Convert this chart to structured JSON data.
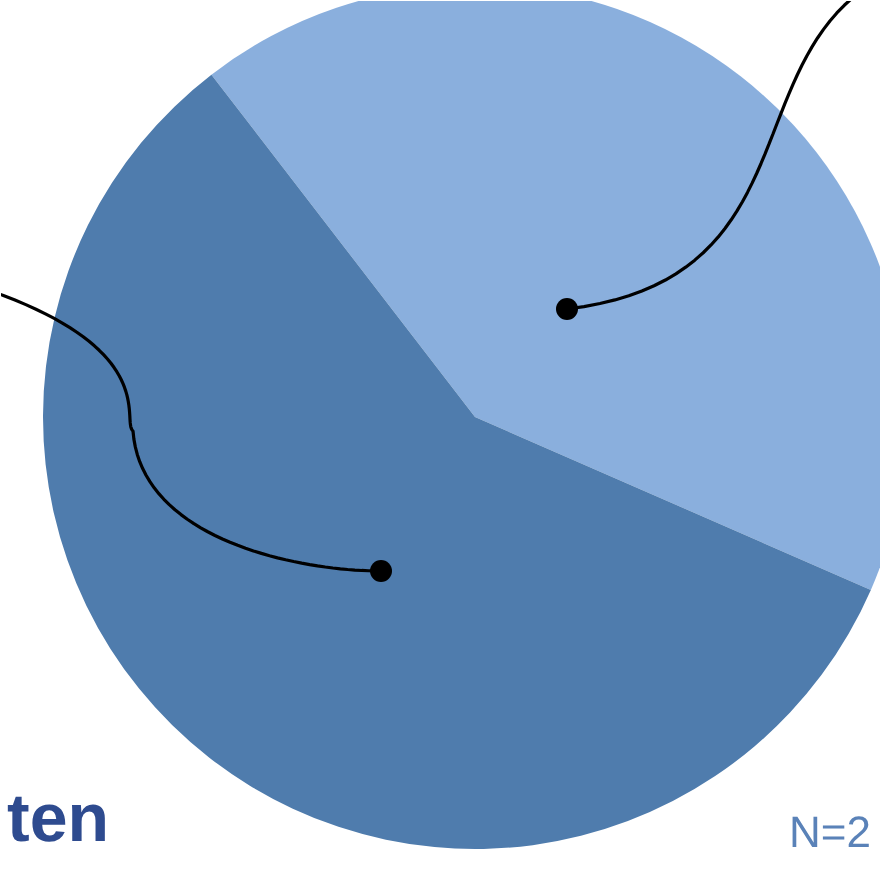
{
  "chart_data": {
    "type": "pie",
    "categories": [
      null,
      null
    ],
    "values": [
      42,
      58
    ],
    "colors": [
      "#8aafdd",
      "#4f7cad"
    ],
    "annotations": [
      "ten",
      "N=2"
    ]
  }
}
